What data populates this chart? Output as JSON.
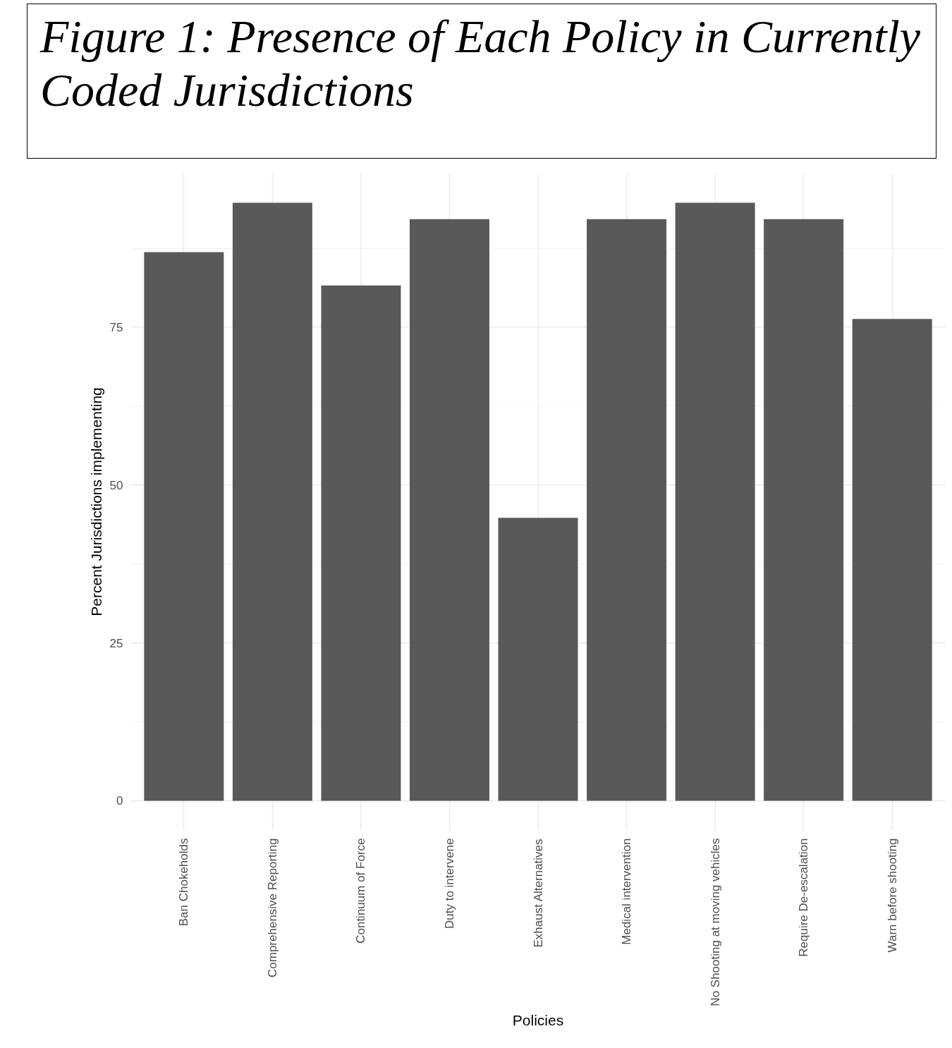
{
  "chart_data": {
    "type": "bar",
    "title": "Figure 1: Presence of Each Policy in Currently Coded Jurisdictions",
    "xlabel": "Policies",
    "ylabel": "Percent Jurisdictions implementing",
    "categories": [
      "Ban Chokeholds",
      "Comprehensive Reporting",
      "Continuum of Force",
      "Duty to intervene",
      "Exhaust Alternatives",
      "Medical intervention",
      "No Shooting at moving vehicles",
      "Require De-escalation",
      "Warn before shooting"
    ],
    "values": [
      86.9,
      94.7,
      81.6,
      92.1,
      44.8,
      92.1,
      94.7,
      92.1,
      76.3
    ],
    "color": "#595959",
    "ylim": [
      -4.7,
      99.4
    ],
    "yticks": [
      0,
      25,
      50,
      75
    ],
    "grid": true
  }
}
